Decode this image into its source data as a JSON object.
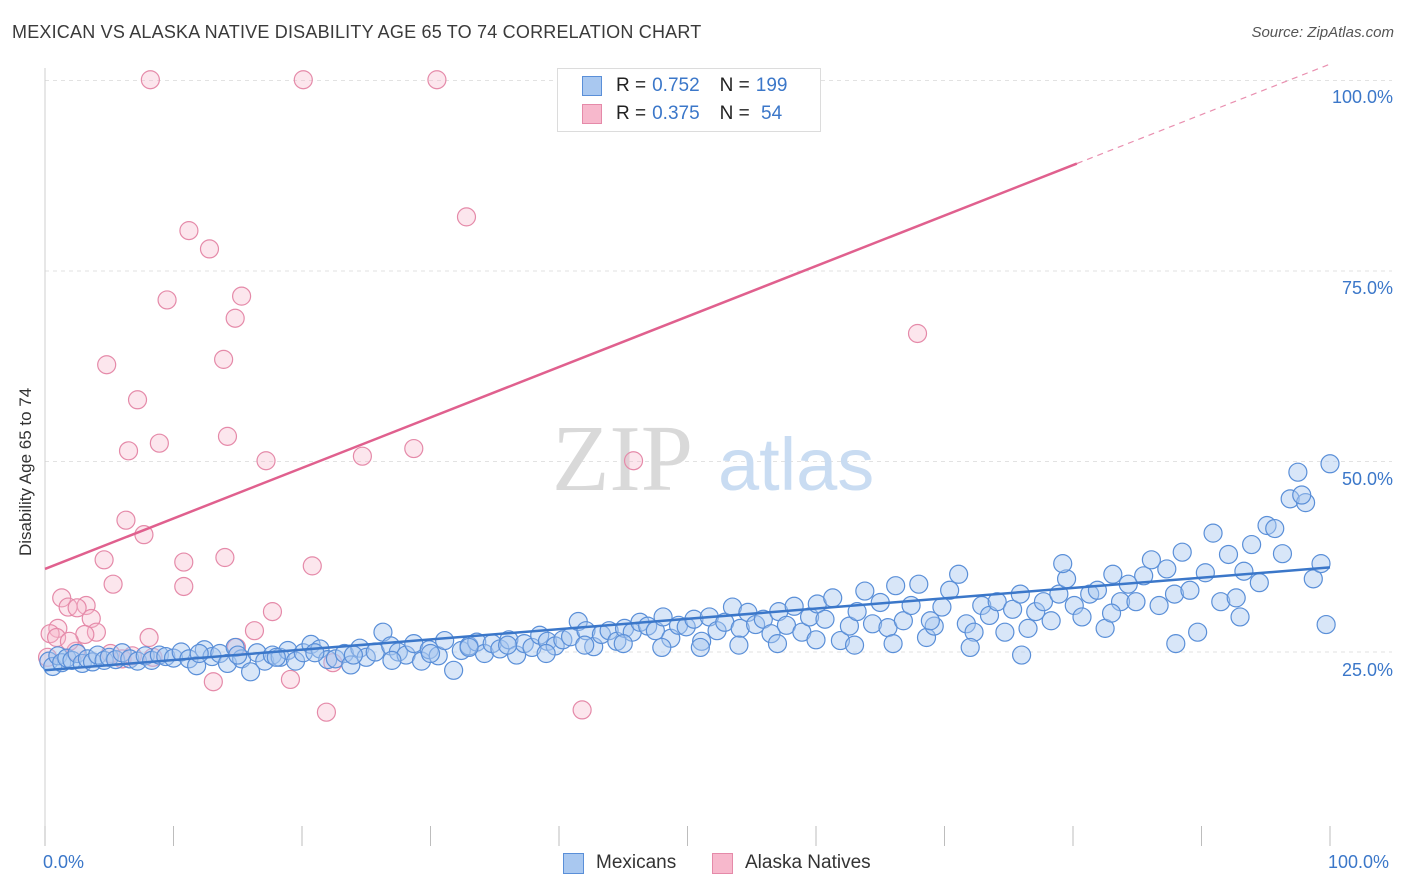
{
  "header": {
    "title": "MEXICAN VS ALASKA NATIVE DISABILITY AGE 65 TO 74 CORRELATION CHART",
    "source": "Source: ZipAtlas.com"
  },
  "watermark": {
    "zip": "ZIP",
    "atlas": "atlas"
  },
  "colors": {
    "blue": "#3b77c9",
    "blue_fill": "#a9c8f0",
    "pink": "#e0608e",
    "pink_fill": "#f7b8cc",
    "grid": "#e2e2e2"
  },
  "legend_top": {
    "rows": [
      {
        "r_label": "R = ",
        "r_value": "0.752",
        "n_label": "N = ",
        "n_value": "199"
      },
      {
        "r_label": "R = ",
        "r_value": "0.375",
        "n_label": "N = ",
        "n_value": " 54"
      }
    ]
  },
  "legend_bottom": [
    "Mexicans",
    "Alaska Natives"
  ],
  "chart_data": {
    "type": "scatter",
    "title": "MEXICAN VS ALASKA NATIVE DISABILITY AGE 65 TO 74 CORRELATION CHART",
    "xlabel": "",
    "ylabel": "Disability Age 65 to 74",
    "xlim": [
      0,
      100
    ],
    "ylim": [
      5,
      103
    ],
    "x_tick_labels": [
      "0.0%",
      "100.0%"
    ],
    "y_tick_labels": [
      "25.0%",
      "50.0%",
      "75.0%",
      "100.0%"
    ],
    "y_ticks": [
      25,
      50,
      75,
      100
    ],
    "grid": true,
    "legend_position": "top-center",
    "series": [
      {
        "name": "Mexicans",
        "color": "#3b77c9",
        "r": 0.752,
        "n": 199,
        "trend": {
          "x": [
            0,
            100
          ],
          "y": [
            22.6,
            36.1
          ],
          "dashed_to": 100
        },
        "points": [
          [
            0.3,
            23.8
          ],
          [
            0.6,
            23.1
          ],
          [
            1.0,
            24.5
          ],
          [
            1.3,
            23.6
          ],
          [
            1.7,
            24.2
          ],
          [
            2.1,
            23.9
          ],
          [
            2.5,
            24.8
          ],
          [
            2.9,
            23.5
          ],
          [
            3.3,
            24.1
          ],
          [
            3.7,
            23.7
          ],
          [
            4.1,
            24.6
          ],
          [
            4.6,
            23.9
          ],
          [
            5.0,
            24.3
          ],
          [
            5.5,
            24.0
          ],
          [
            6.0,
            24.9
          ],
          [
            6.6,
            24.1
          ],
          [
            7.2,
            23.8
          ],
          [
            7.8,
            24.5
          ],
          [
            8.3,
            23.9
          ],
          [
            8.9,
            24.6
          ],
          [
            9.4,
            24.4
          ],
          [
            10.0,
            24.2
          ],
          [
            10.6,
            25.0
          ],
          [
            11.2,
            24.1
          ],
          [
            11.8,
            23.2
          ],
          [
            12.4,
            25.3
          ],
          [
            13.0,
            24.4
          ],
          [
            13.6,
            24.8
          ],
          [
            14.2,
            23.5
          ],
          [
            14.8,
            25.6
          ],
          [
            15.3,
            24.1
          ],
          [
            16.0,
            22.4
          ],
          [
            16.5,
            24.9
          ],
          [
            17.1,
            23.8
          ],
          [
            17.7,
            24.6
          ],
          [
            18.3,
            24.3
          ],
          [
            18.9,
            25.2
          ],
          [
            19.5,
            23.8
          ],
          [
            20.1,
            24.9
          ],
          [
            20.7,
            26.0
          ],
          [
            21.4,
            25.4
          ],
          [
            22.0,
            24.0
          ],
          [
            22.6,
            24.1
          ],
          [
            23.3,
            24.8
          ],
          [
            23.8,
            23.3
          ],
          [
            24.5,
            25.5
          ],
          [
            25.0,
            24.3
          ],
          [
            25.7,
            25.0
          ],
          [
            26.3,
            27.6
          ],
          [
            26.9,
            25.8
          ],
          [
            27.5,
            25.0
          ],
          [
            28.1,
            24.6
          ],
          [
            28.7,
            26.1
          ],
          [
            29.3,
            23.8
          ],
          [
            29.9,
            25.3
          ],
          [
            30.6,
            24.5
          ],
          [
            31.1,
            26.5
          ],
          [
            31.8,
            22.6
          ],
          [
            32.4,
            25.2
          ],
          [
            33.0,
            25.8
          ],
          [
            33.6,
            26.3
          ],
          [
            34.2,
            24.8
          ],
          [
            34.8,
            26.1
          ],
          [
            35.4,
            25.4
          ],
          [
            36.1,
            26.6
          ],
          [
            36.7,
            24.6
          ],
          [
            37.3,
            26.1
          ],
          [
            37.9,
            25.6
          ],
          [
            38.5,
            27.2
          ],
          [
            39.1,
            26.4
          ],
          [
            39.7,
            25.8
          ],
          [
            40.3,
            26.6
          ],
          [
            40.9,
            27.0
          ],
          [
            41.5,
            29.0
          ],
          [
            42.1,
            27.8
          ],
          [
            42.7,
            25.7
          ],
          [
            43.3,
            27.3
          ],
          [
            43.9,
            27.8
          ],
          [
            44.5,
            26.4
          ],
          [
            45.1,
            28.1
          ],
          [
            45.7,
            27.6
          ],
          [
            46.3,
            28.9
          ],
          [
            46.9,
            28.4
          ],
          [
            47.5,
            27.8
          ],
          [
            48.1,
            29.6
          ],
          [
            48.7,
            26.8
          ],
          [
            49.3,
            28.5
          ],
          [
            49.9,
            28.3
          ],
          [
            50.5,
            29.3
          ],
          [
            51.1,
            26.4
          ],
          [
            51.7,
            29.6
          ],
          [
            52.3,
            27.8
          ],
          [
            52.9,
            28.9
          ],
          [
            53.5,
            30.9
          ],
          [
            54.1,
            28.1
          ],
          [
            54.7,
            30.2
          ],
          [
            55.3,
            28.6
          ],
          [
            55.9,
            29.3
          ],
          [
            56.5,
            27.4
          ],
          [
            57.1,
            30.3
          ],
          [
            57.7,
            28.5
          ],
          [
            58.3,
            31.0
          ],
          [
            58.9,
            27.6
          ],
          [
            59.5,
            29.6
          ],
          [
            60.1,
            31.3
          ],
          [
            60.7,
            29.3
          ],
          [
            61.3,
            32.1
          ],
          [
            61.9,
            26.5
          ],
          [
            62.6,
            28.4
          ],
          [
            63.2,
            30.3
          ],
          [
            63.8,
            33.0
          ],
          [
            64.4,
            28.7
          ],
          [
            65.0,
            31.5
          ],
          [
            65.6,
            28.2
          ],
          [
            66.2,
            33.7
          ],
          [
            66.8,
            29.1
          ],
          [
            67.4,
            31.1
          ],
          [
            68.0,
            33.9
          ],
          [
            68.6,
            26.9
          ],
          [
            69.2,
            28.4
          ],
          [
            69.8,
            30.9
          ],
          [
            70.4,
            33.1
          ],
          [
            71.1,
            35.2
          ],
          [
            71.7,
            28.7
          ],
          [
            72.3,
            27.6
          ],
          [
            72.9,
            31.1
          ],
          [
            73.5,
            29.8
          ],
          [
            74.1,
            31.6
          ],
          [
            74.7,
            27.6
          ],
          [
            75.3,
            30.6
          ],
          [
            75.9,
            32.6
          ],
          [
            76.5,
            28.1
          ],
          [
            77.1,
            30.3
          ],
          [
            77.7,
            31.6
          ],
          [
            78.3,
            29.1
          ],
          [
            78.9,
            32.6
          ],
          [
            79.5,
            34.6
          ],
          [
            80.1,
            31.1
          ],
          [
            80.7,
            29.6
          ],
          [
            81.3,
            32.6
          ],
          [
            81.9,
            33.1
          ],
          [
            82.5,
            28.1
          ],
          [
            83.1,
            35.2
          ],
          [
            83.7,
            31.6
          ],
          [
            84.3,
            33.9
          ],
          [
            84.9,
            31.6
          ],
          [
            85.5,
            35.0
          ],
          [
            86.1,
            37.1
          ],
          [
            86.7,
            31.1
          ],
          [
            87.3,
            35.9
          ],
          [
            87.9,
            32.6
          ],
          [
            88.5,
            38.1
          ],
          [
            89.1,
            33.1
          ],
          [
            89.7,
            27.6
          ],
          [
            90.3,
            35.4
          ],
          [
            90.9,
            40.6
          ],
          [
            91.5,
            31.6
          ],
          [
            92.1,
            37.8
          ],
          [
            92.7,
            32.1
          ],
          [
            93.3,
            35.6
          ],
          [
            93.9,
            39.1
          ],
          [
            94.5,
            34.1
          ],
          [
            95.1,
            41.6
          ],
          [
            95.7,
            41.2
          ],
          [
            96.3,
            37.9
          ],
          [
            96.9,
            45.1
          ],
          [
            97.5,
            48.6
          ],
          [
            98.1,
            44.6
          ],
          [
            98.7,
            34.6
          ],
          [
            99.3,
            36.6
          ],
          [
            100.0,
            49.7
          ],
          [
            99.7,
            28.6
          ],
          [
            97.8,
            45.6
          ],
          [
            93.0,
            29.6
          ],
          [
            88.0,
            26.1
          ],
          [
            83.0,
            30.1
          ],
          [
            79.2,
            36.6
          ],
          [
            76.0,
            24.6
          ],
          [
            72.0,
            25.6
          ],
          [
            68.9,
            29.1
          ],
          [
            66.0,
            26.1
          ],
          [
            63.0,
            25.9
          ],
          [
            60.0,
            26.6
          ],
          [
            57.0,
            26.1
          ],
          [
            54.0,
            25.9
          ],
          [
            51.0,
            25.6
          ],
          [
            48.0,
            25.6
          ],
          [
            45.0,
            26.1
          ],
          [
            42.0,
            25.9
          ],
          [
            39.0,
            24.8
          ],
          [
            36.0,
            25.9
          ],
          [
            33.0,
            25.6
          ],
          [
            30.0,
            24.8
          ],
          [
            27.0,
            23.9
          ],
          [
            24.0,
            24.6
          ],
          [
            21.0,
            24.9
          ],
          [
            18.0,
            24.3
          ],
          [
            15.0,
            24.6
          ],
          [
            12.0,
            24.8
          ]
        ]
      },
      {
        "name": "Alaska Natives",
        "color": "#e0608e",
        "r": 0.375,
        "n": 54,
        "trend": {
          "x": [
            0,
            80.3
          ],
          "y": [
            35.9,
            89.1
          ],
          "dashed_to": 100
        },
        "points": [
          [
            8.2,
            100.1
          ],
          [
            20.1,
            100.1
          ],
          [
            30.5,
            100.1
          ],
          [
            32.8,
            82.1
          ],
          [
            11.2,
            80.3
          ],
          [
            12.8,
            77.9
          ],
          [
            9.5,
            71.2
          ],
          [
            15.3,
            71.7
          ],
          [
            14.8,
            68.8
          ],
          [
            4.8,
            62.7
          ],
          [
            13.9,
            63.4
          ],
          [
            7.2,
            58.1
          ],
          [
            14.2,
            53.3
          ],
          [
            6.5,
            51.4
          ],
          [
            8.9,
            52.4
          ],
          [
            17.2,
            50.1
          ],
          [
            24.7,
            50.7
          ],
          [
            28.7,
            51.7
          ],
          [
            45.8,
            50.1
          ],
          [
            67.9,
            66.8
          ],
          [
            6.3,
            42.3
          ],
          [
            7.7,
            40.4
          ],
          [
            4.6,
            37.1
          ],
          [
            10.8,
            36.8
          ],
          [
            14.0,
            37.4
          ],
          [
            20.8,
            36.3
          ],
          [
            5.3,
            33.9
          ],
          [
            10.8,
            33.6
          ],
          [
            1.3,
            32.1
          ],
          [
            3.2,
            31.1
          ],
          [
            1.8,
            30.9
          ],
          [
            2.5,
            30.8
          ],
          [
            3.6,
            29.4
          ],
          [
            17.7,
            30.3
          ],
          [
            1.0,
            28.1
          ],
          [
            0.4,
            27.4
          ],
          [
            0.9,
            26.9
          ],
          [
            4.0,
            27.6
          ],
          [
            3.1,
            27.3
          ],
          [
            8.1,
            26.9
          ],
          [
            16.3,
            27.8
          ],
          [
            2.4,
            25.1
          ],
          [
            1.9,
            26.4
          ],
          [
            5.1,
            24.8
          ],
          [
            6.0,
            24.1
          ],
          [
            8.4,
            24.3
          ],
          [
            14.9,
            25.6
          ],
          [
            19.1,
            21.4
          ],
          [
            13.1,
            21.1
          ],
          [
            22.4,
            23.6
          ],
          [
            21.9,
            17.1
          ],
          [
            41.8,
            17.4
          ],
          [
            0.2,
            24.3
          ],
          [
            6.8,
            24.5
          ]
        ]
      }
    ]
  }
}
